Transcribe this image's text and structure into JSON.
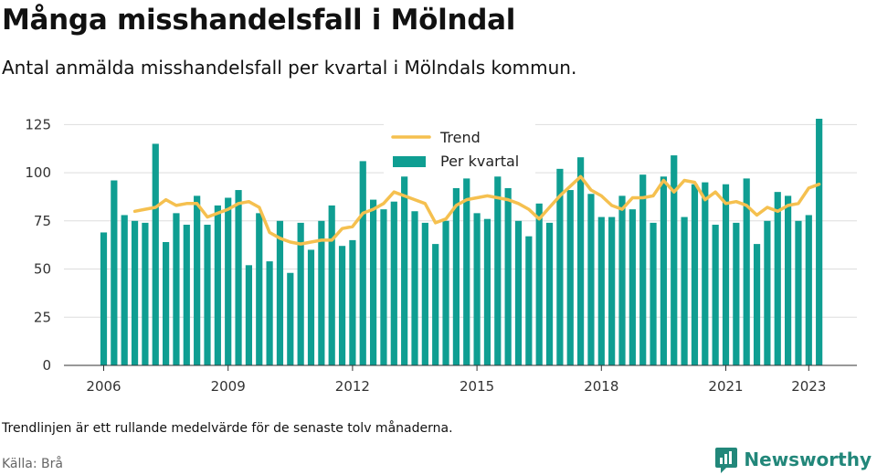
{
  "title": "Många misshandelsfall i Mölndal",
  "subtitle": "Antal anmälda misshandelsfall per kvartal i Mölndals kommun.",
  "footnote": "Trendlinjen är ett rullande medelvärde för de senaste tolv månaderna.",
  "source": "Källa: Brå",
  "brand": "Newsworthy",
  "colors": {
    "bar": "#0f9e92",
    "trend": "#f5c04f",
    "grid": "#dddddd",
    "brand": "#22877a"
  },
  "chart_data": {
    "type": "bar",
    "x": [
      "2006-Q1",
      "2006-Q2",
      "2006-Q3",
      "2006-Q4",
      "2007-Q1",
      "2007-Q2",
      "2007-Q3",
      "2007-Q4",
      "2008-Q1",
      "2008-Q2",
      "2008-Q3",
      "2008-Q4",
      "2009-Q1",
      "2009-Q2",
      "2009-Q3",
      "2009-Q4",
      "2010-Q1",
      "2010-Q2",
      "2010-Q3",
      "2010-Q4",
      "2011-Q1",
      "2011-Q2",
      "2011-Q3",
      "2011-Q4",
      "2012-Q1",
      "2012-Q2",
      "2012-Q3",
      "2012-Q4",
      "2013-Q1",
      "2013-Q2",
      "2013-Q3",
      "2013-Q4",
      "2014-Q1",
      "2014-Q2",
      "2014-Q3",
      "2014-Q4",
      "2015-Q1",
      "2015-Q2",
      "2015-Q3",
      "2015-Q4",
      "2016-Q1",
      "2016-Q2",
      "2016-Q3",
      "2016-Q4",
      "2017-Q1",
      "2017-Q2",
      "2017-Q3",
      "2017-Q4",
      "2018-Q1",
      "2018-Q2",
      "2018-Q3",
      "2018-Q4",
      "2019-Q1",
      "2019-Q2",
      "2019-Q3",
      "2019-Q4",
      "2020-Q1",
      "2020-Q2",
      "2020-Q3",
      "2020-Q4",
      "2021-Q1",
      "2021-Q2",
      "2021-Q3",
      "2021-Q4",
      "2022-Q1",
      "2022-Q2",
      "2022-Q3",
      "2022-Q4",
      "2023-Q1",
      "2023-Q2"
    ],
    "series": [
      {
        "name": "Per kvartal",
        "type": "bar",
        "values": [
          69,
          96,
          78,
          75,
          74,
          115,
          64,
          79,
          73,
          88,
          73,
          83,
          87,
          91,
          52,
          79,
          54,
          75,
          48,
          74,
          60,
          75,
          83,
          62,
          65,
          106,
          86,
          81,
          85,
          98,
          80,
          74,
          63,
          75,
          92,
          97,
          79,
          76,
          98,
          92,
          75,
          67,
          84,
          74,
          102,
          91,
          108,
          89,
          77,
          77,
          88,
          81,
          99,
          74,
          98,
          109,
          77,
          94,
          95,
          73,
          94,
          74,
          97,
          63,
          75,
          90,
          88,
          75,
          78,
          128
        ]
      },
      {
        "name": "Trend",
        "type": "line",
        "values": [
          null,
          null,
          null,
          80,
          81,
          82,
          86,
          83,
          84,
          84,
          77,
          79,
          81,
          84,
          85,
          82,
          69,
          66,
          64,
          63,
          64,
          65,
          65,
          71,
          72,
          79,
          81,
          84,
          90,
          88,
          86,
          84,
          74,
          76,
          83,
          86,
          87,
          88,
          87,
          86,
          84,
          81,
          76,
          82,
          88,
          93,
          98,
          91,
          88,
          83,
          81,
          87,
          87,
          88,
          96,
          90,
          96,
          95,
          86,
          90,
          84,
          85,
          83,
          78,
          82,
          80,
          83,
          84,
          92,
          94
        ]
      }
    ],
    "ylim": [
      0,
      128
    ],
    "yticks": [
      0,
      25,
      50,
      75,
      100,
      125
    ],
    "xticks": [
      "2006",
      "2009",
      "2012",
      "2015",
      "2018",
      "2021",
      "2023"
    ],
    "grid": true,
    "legend": "top-center"
  }
}
